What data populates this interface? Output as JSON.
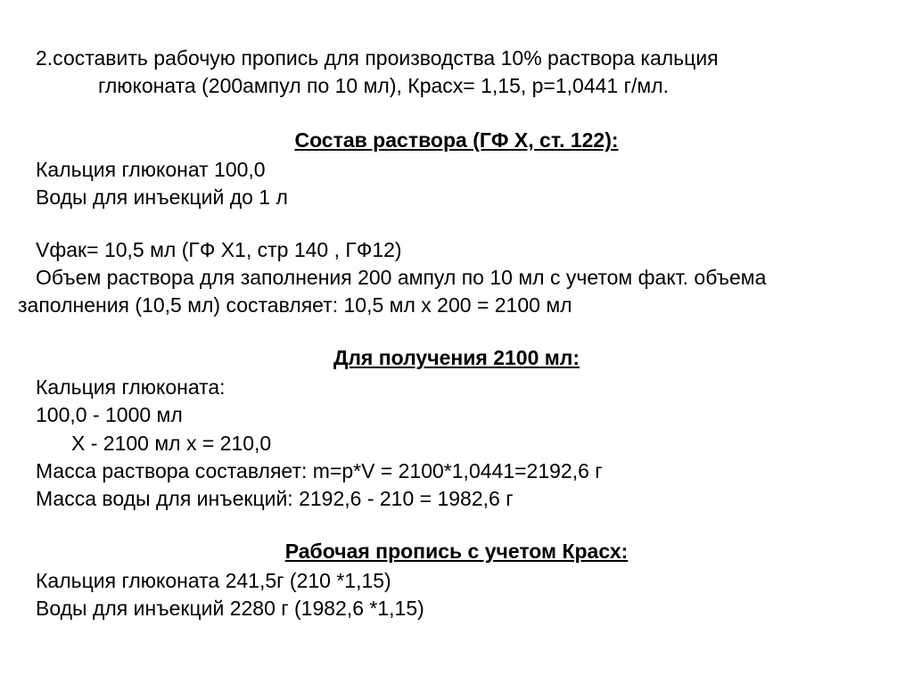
{
  "task": {
    "line1": "2.составить рабочую пропись для производства 10% раствора кальция",
    "line2": "глюконата (200ампул по 10 мл), Красх= 1,15, р=1,0441 г/мл."
  },
  "section1": {
    "heading": "Состав раствора (ГФ Х, ст. 122):",
    "line1": "Кальция глюконат  100,0",
    "line2": "Воды для инъекций до 1 л"
  },
  "calc1": {
    "line1": "Vфак= 10,5 мл (ГФ Х1, стр 140 , ГФ12)",
    "line2": "Объем раствора для заполнения 200 ампул по 10 мл с учетом факт. объема",
    "line3": "заполнения (10,5 мл) составляет: 10,5 мл х 200 = 2100 мл"
  },
  "section2": {
    "heading": "Для получения 2100 мл:",
    "line1": "Кальция глюконата:",
    "line2": "100,0  -  1000 мл",
    "line3": "Х  -  2100 мл   х = 210,0",
    "line4": "Масса раствора составляет: m=p*V = 2100*1,0441=2192,6 г",
    "line5": "Масса воды для инъекций: 2192,6 - 210 = 1982,6 г"
  },
  "section3": {
    "heading": "Рабочая пропись с учетом Красх:",
    "line1": "Кальция глюконата 241,5г (210 *1,15)",
    "line2": "Воды для инъекций 2280 г (1982,6 *1,15)"
  }
}
